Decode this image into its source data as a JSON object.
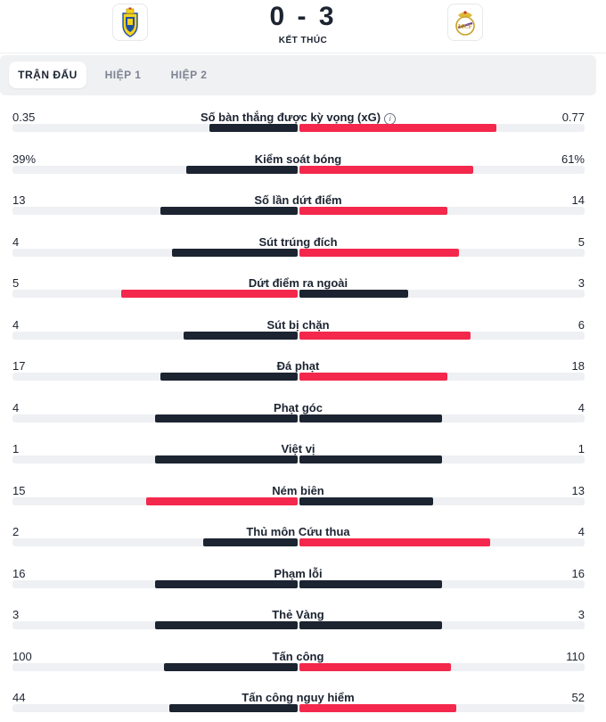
{
  "match": {
    "score": "0 - 3",
    "status": "KẾT THÚC",
    "home_logo": "cadiz-crest-icon",
    "away_logo": "real-madrid-crest-icon"
  },
  "tabs": [
    {
      "label": "TRẬN ĐẤU",
      "active": true
    },
    {
      "label": "HIỆP 1",
      "active": false
    },
    {
      "label": "HIỆP 2",
      "active": false
    }
  ],
  "colors": {
    "leader": "#f4284c",
    "trailer": "#1c2431",
    "track": "#eef0f3"
  },
  "stats": [
    {
      "label": "Số bàn thắng được kỳ vọng (xG)",
      "home": "0.35",
      "away": "0.77",
      "home_share": 0.31,
      "away_share": 0.69,
      "info": true
    },
    {
      "label": "Kiểm soát bóng",
      "home": "39%",
      "away": "61%",
      "home_share": 0.39,
      "away_share": 0.61
    },
    {
      "label": "Số lần dứt điểm",
      "home": "13",
      "away": "14",
      "home_share": 0.48,
      "away_share": 0.52
    },
    {
      "label": "Sút trúng đích",
      "home": "4",
      "away": "5",
      "home_share": 0.44,
      "away_share": 0.56
    },
    {
      "label": "Dứt điểm ra ngoài",
      "home": "5",
      "away": "3",
      "home_share": 0.62,
      "away_share": 0.38
    },
    {
      "label": "Sút bị chặn",
      "home": "4",
      "away": "6",
      "home_share": 0.4,
      "away_share": 0.6
    },
    {
      "label": "Đá phạt",
      "home": "17",
      "away": "18",
      "home_share": 0.48,
      "away_share": 0.52
    },
    {
      "label": "Phạt góc",
      "home": "4",
      "away": "4",
      "home_share": 0.5,
      "away_share": 0.5
    },
    {
      "label": "Việt vị",
      "home": "1",
      "away": "1",
      "home_share": 0.5,
      "away_share": 0.5
    },
    {
      "label": "Ném biên",
      "home": "15",
      "away": "13",
      "home_share": 0.53,
      "away_share": 0.47
    },
    {
      "label": "Thủ môn Cứu thua",
      "home": "2",
      "away": "4",
      "home_share": 0.33,
      "away_share": 0.67
    },
    {
      "label": "Phạm lỗi",
      "home": "16",
      "away": "16",
      "home_share": 0.5,
      "away_share": 0.5
    },
    {
      "label": "Thẻ Vàng",
      "home": "3",
      "away": "3",
      "home_share": 0.5,
      "away_share": 0.5
    },
    {
      "label": "Tấn công",
      "home": "100",
      "away": "110",
      "home_share": 0.47,
      "away_share": 0.53
    },
    {
      "label": "Tấn công nguy hiểm",
      "home": "44",
      "away": "52",
      "home_share": 0.45,
      "away_share": 0.55
    }
  ]
}
